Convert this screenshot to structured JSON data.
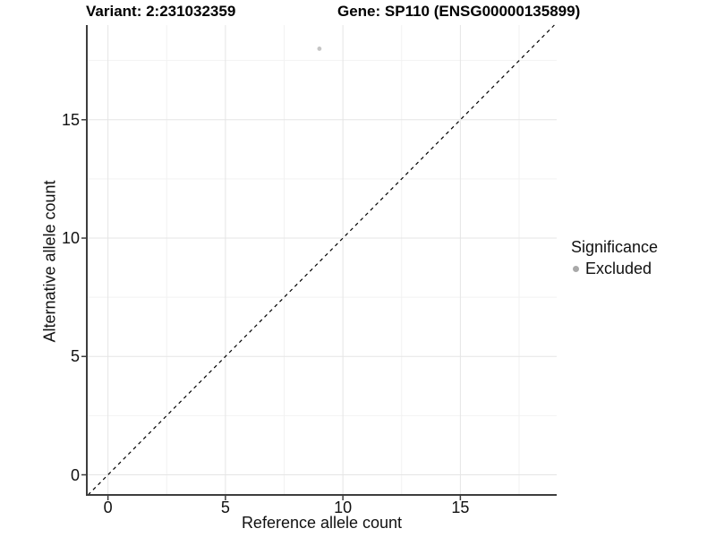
{
  "titles": {
    "variant": "Variant: 2:231032359",
    "gene": "Gene: SP110 (ENSG00000135899)"
  },
  "chart_data": {
    "type": "scatter",
    "title": "Variant: 2:231032359   Gene: SP110 (ENSG00000135899)",
    "xlabel": "Reference allele count",
    "ylabel": "Alternative allele count",
    "points": [
      {
        "x": 9,
        "y": 18,
        "significance": "Excluded"
      }
    ],
    "reference_line": {
      "kind": "abline",
      "slope": 1,
      "intercept": 0,
      "style": "dashed",
      "color": "#000000"
    },
    "xlim": [
      -0.9,
      19.1
    ],
    "ylim": [
      -0.85,
      19.0
    ],
    "x_ticks": [
      0,
      5,
      10,
      15
    ],
    "y_ticks": [
      0,
      5,
      10,
      15
    ],
    "x_minor_ticks": [
      2.5,
      7.5,
      12.5,
      17.5
    ],
    "y_minor_ticks": [
      2.5,
      7.5,
      12.5,
      17.5
    ],
    "grid": true,
    "legend": {
      "title": "Significance",
      "position": "right",
      "entries": [
        {
          "label": "Excluded",
          "color": "#a9a9a9",
          "marker": "circle"
        }
      ]
    },
    "colors": {
      "point": "#c5c5c5",
      "axis_line": "#3d3d3d",
      "grid_major": "#e5e5e5",
      "grid_minor": "#f2f2f2",
      "background": "#ffffff"
    }
  }
}
